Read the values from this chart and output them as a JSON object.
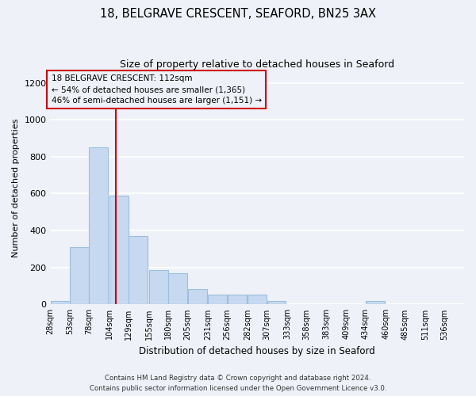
{
  "title1": "18, BELGRAVE CRESCENT, SEAFORD, BN25 3AX",
  "title2": "Size of property relative to detached houses in Seaford",
  "xlabel": "Distribution of detached houses by size in Seaford",
  "ylabel": "Number of detached properties",
  "bins": [
    28,
    53,
    78,
    104,
    129,
    155,
    180,
    205,
    231,
    256,
    282,
    307,
    333,
    358,
    383,
    409,
    434,
    460,
    485,
    511,
    536
  ],
  "values": [
    20,
    310,
    850,
    590,
    370,
    185,
    170,
    85,
    55,
    55,
    55,
    20,
    0,
    0,
    0,
    0,
    20,
    0,
    0,
    0,
    0
  ],
  "bar_color": "#c6d9f0",
  "bar_edge_color": "#9dbedd",
  "vline_x": 112,
  "vline_color": "#cc0000",
  "annotation_line1": "18 BELGRAVE CRESCENT: 112sqm",
  "annotation_line2": "← 54% of detached houses are smaller (1,365)",
  "annotation_line3": "46% of semi-detached houses are larger (1,151) →",
  "annotation_box_color": "#cc0000",
  "ylim": [
    0,
    1260
  ],
  "yticks": [
    0,
    200,
    400,
    600,
    800,
    1000,
    1200
  ],
  "footnote1": "Contains HM Land Registry data © Crown copyright and database right 2024.",
  "footnote2": "Contains public sector information licensed under the Open Government Licence v3.0.",
  "bg_color": "#eef2f8",
  "grid_color": "#ffffff"
}
